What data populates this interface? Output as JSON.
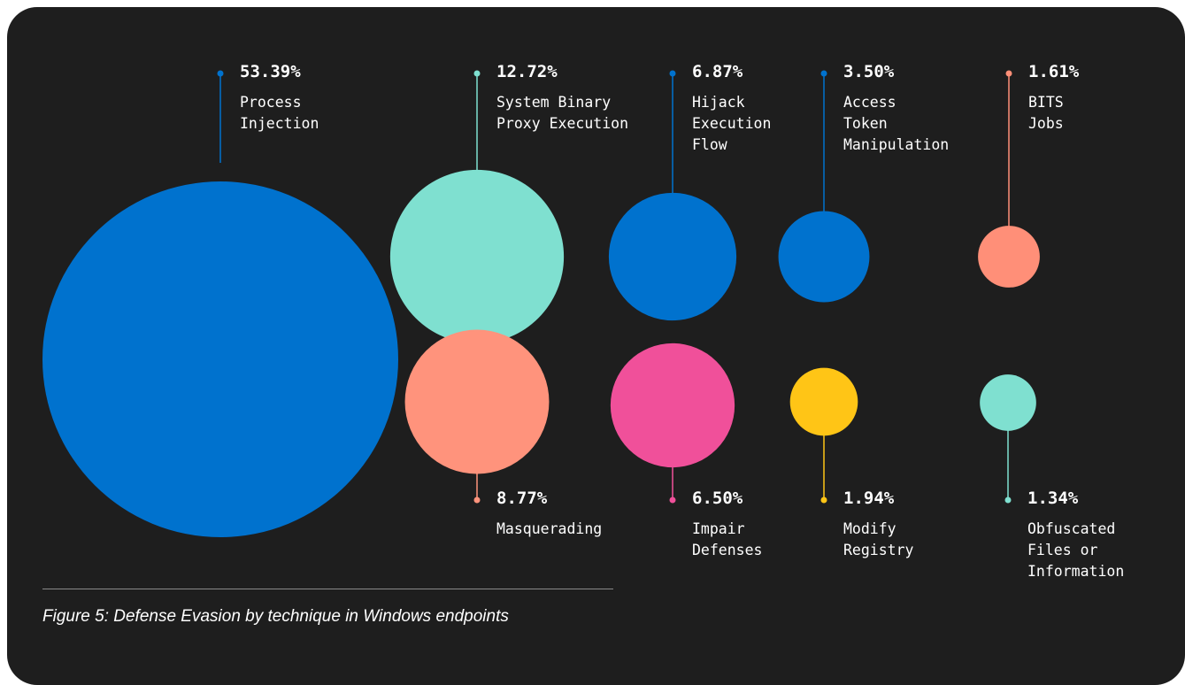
{
  "chart_data": {
    "type": "bubble",
    "unit": "%",
    "series": [
      {
        "label": "Process\nInjection",
        "value": 53.39,
        "display": "53.39%",
        "color": "#0072ce"
      },
      {
        "label": "System Binary\nProxy Execution",
        "value": 12.72,
        "display": "12.72%",
        "color": "#7fe0d0"
      },
      {
        "label": "Hijack\nExecution\nFlow",
        "value": 6.87,
        "display": "6.87%",
        "color": "#0072ce"
      },
      {
        "label": "Access\nToken\nManipulation",
        "value": 3.5,
        "display": "3.50%",
        "color": "#0072ce"
      },
      {
        "label": "BITS\nJobs",
        "value": 1.61,
        "display": "1.61%",
        "color": "#ff8f78"
      },
      {
        "label": "Masquerading",
        "value": 8.77,
        "display": "8.77%",
        "color": "#ff937c"
      },
      {
        "label": "Impair\nDefenses",
        "value": 6.5,
        "display": "6.50%",
        "color": "#f0509a"
      },
      {
        "label": "Modify\nRegistry",
        "value": 1.94,
        "display": "1.94%",
        "color": "#ffc516"
      },
      {
        "label": "Obfuscated\nFiles or\nInformation",
        "value": 1.34,
        "display": "1.34%",
        "color": "#7fe0d0"
      }
    ]
  },
  "caption": "Figure 5: Defense Evasion by technique in Windows endpoints",
  "colors": {
    "background": "#1e1e1e",
    "text": "#ffffff",
    "rule": "#8a8a8a"
  }
}
